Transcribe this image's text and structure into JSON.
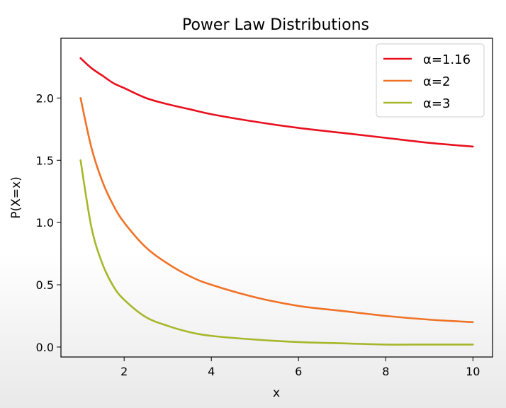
{
  "chart_data": {
    "type": "line",
    "title": "Power Law Distributions",
    "xlabel": "x",
    "ylabel": "P(X=x)",
    "xlim": [
      0.55,
      10.45
    ],
    "ylim": [
      -0.08,
      2.48
    ],
    "xticks": [
      2,
      4,
      6,
      8,
      10
    ],
    "yticks": [
      0.0,
      0.5,
      1.0,
      1.5,
      2.0
    ],
    "ytick_labels": [
      "0.0",
      "0.5",
      "1.0",
      "1.5",
      "2.0"
    ],
    "xtick_labels": [
      "2",
      "4",
      "6",
      "8",
      "10"
    ],
    "grid": false,
    "legend": "top-right",
    "x": [
      1.0,
      1.25,
      1.5,
      1.75,
      2.0,
      2.5,
      3.0,
      3.5,
      4.0,
      5.0,
      6.0,
      7.0,
      8.0,
      9.0,
      10.0
    ],
    "series": [
      {
        "name": "α=1.16",
        "color": "#e8101e",
        "values": [
          2.32,
          2.24,
          2.18,
          2.12,
          2.08,
          2.0,
          1.95,
          1.91,
          1.87,
          1.81,
          1.76,
          1.72,
          1.68,
          1.64,
          1.61
        ]
      },
      {
        "name": "α=2",
        "color": "#f07226",
        "values": [
          2.0,
          1.6,
          1.33,
          1.14,
          1.0,
          0.8,
          0.67,
          0.57,
          0.5,
          0.4,
          0.33,
          0.29,
          0.25,
          0.22,
          0.2
        ]
      },
      {
        "name": "α=3",
        "color": "#a6b72a",
        "values": [
          1.5,
          0.96,
          0.67,
          0.49,
          0.38,
          0.24,
          0.17,
          0.12,
          0.09,
          0.06,
          0.04,
          0.03,
          0.02,
          0.02,
          0.02
        ]
      }
    ]
  }
}
